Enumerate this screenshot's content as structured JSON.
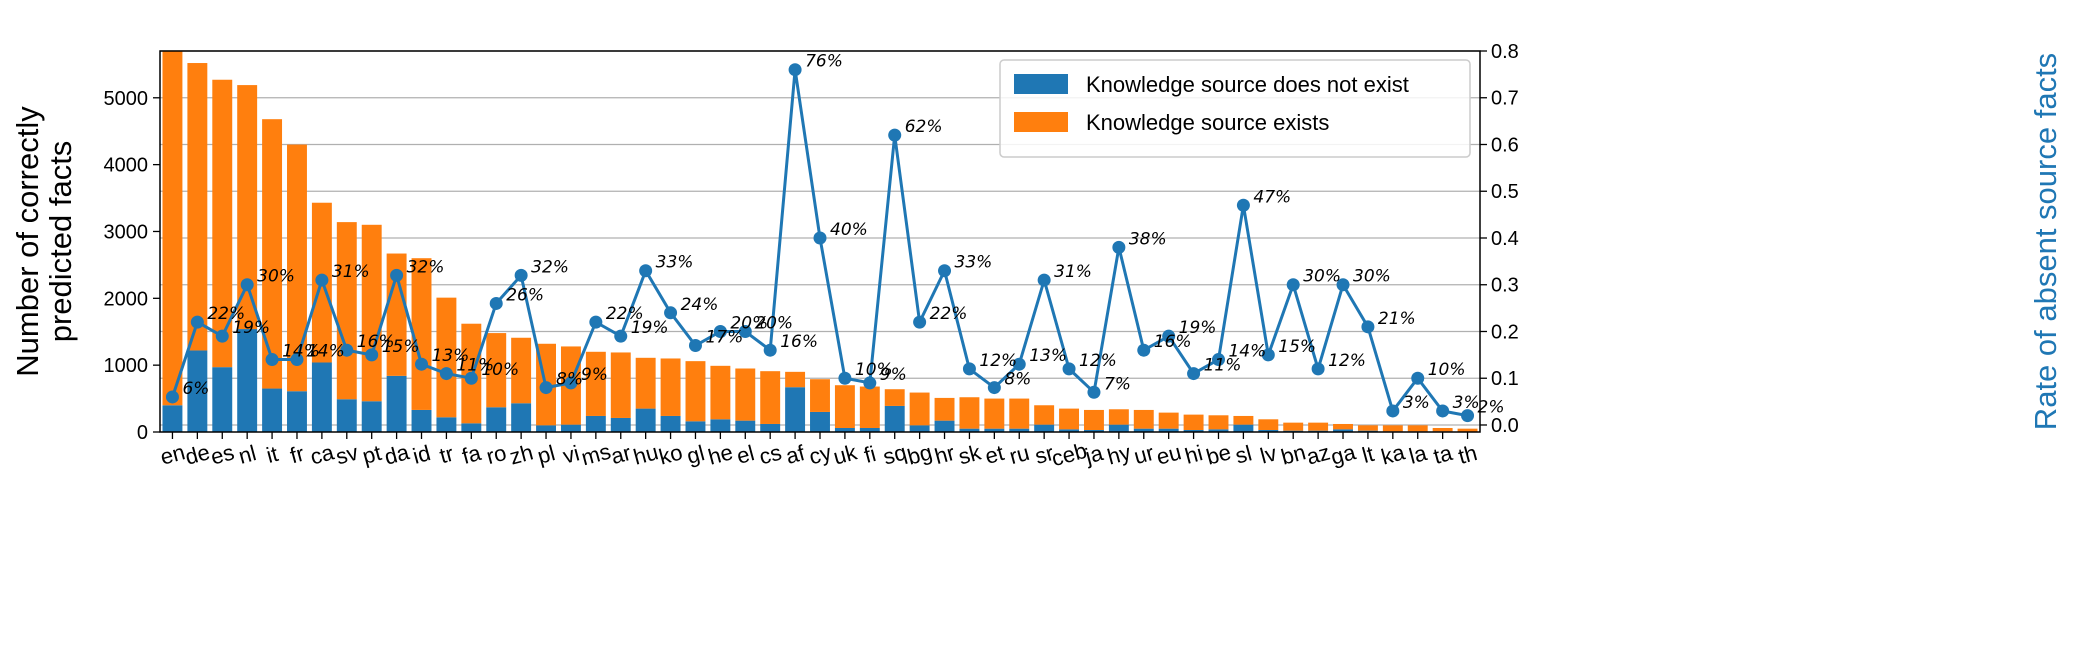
{
  "chart_data": {
    "type": "bar",
    "categories": [
      "en",
      "de",
      "es",
      "nl",
      "it",
      "fr",
      "ca",
      "sv",
      "pt",
      "da",
      "id",
      "tr",
      "fa",
      "ro",
      "zh",
      "pl",
      "vi",
      "ms",
      "ar",
      "hu",
      "ko",
      "gl",
      "he",
      "el",
      "cs",
      "af",
      "cy",
      "uk",
      "fi",
      "sq",
      "bg",
      "hr",
      "sk",
      "et",
      "ru",
      "sr",
      "ceb",
      "ja",
      "hy",
      "ur",
      "eu",
      "hi",
      "be",
      "sl",
      "lv",
      "bn",
      "az",
      "ga",
      "lt",
      "ka",
      "la",
      "ta",
      "th"
    ],
    "series": [
      {
        "name": "Knowledge source does not exist",
        "color": "#1f77b4",
        "values": [
          400,
          1220,
          970,
          1540,
          650,
          610,
          1040,
          490,
          460,
          840,
          330,
          220,
          130,
          370,
          430,
          100,
          110,
          240,
          210,
          350,
          240,
          160,
          190,
          170,
          120,
          670,
          300,
          60,
          60,
          390,
          100,
          170,
          50,
          50,
          50,
          110,
          40,
          30,
          110,
          50,
          50,
          30,
          40,
          110,
          30,
          20,
          20,
          40,
          20,
          10,
          10,
          10,
          0
        ]
      },
      {
        "name": "Knowledge source exists",
        "color": "#ff7f0e",
        "values": [
          5330,
          4300,
          4300,
          3650,
          4030,
          3690,
          2390,
          2650,
          2640,
          1830,
          2270,
          1790,
          1490,
          1110,
          980,
          1220,
          1170,
          960,
          980,
          760,
          860,
          900,
          800,
          780,
          790,
          230,
          490,
          640,
          620,
          250,
          490,
          340,
          470,
          450,
          450,
          290,
          310,
          300,
          230,
          280,
          240,
          230,
          210,
          130,
          160,
          120,
          120,
          80,
          80,
          90,
          90,
          50,
          50
        ]
      }
    ],
    "rate": {
      "name": "Rate of absent source facts",
      "values": [
        0.06,
        0.22,
        0.19,
        0.3,
        0.14,
        0.14,
        0.31,
        0.16,
        0.15,
        0.32,
        0.13,
        0.11,
        0.1,
        0.26,
        0.32,
        0.08,
        0.09,
        0.22,
        0.19,
        0.33,
        0.24,
        0.17,
        0.2,
        0.2,
        0.16,
        0.76,
        0.4,
        0.1,
        0.09,
        0.62,
        0.22,
        0.33,
        0.12,
        0.08,
        0.13,
        0.31,
        0.12,
        0.07,
        0.38,
        0.16,
        0.19,
        0.11,
        0.14,
        0.47,
        0.15,
        0.3,
        0.12,
        0.3,
        0.21,
        0.03,
        0.1,
        0.03,
        0.02
      ],
      "labels": [
        "6%",
        "22%",
        "19%",
        "30%",
        "14%",
        "14%",
        "31%",
        "16%",
        "15%",
        "32%",
        "13%",
        "11%",
        "10%",
        "26%",
        "32%",
        "8%",
        "9%",
        "22%",
        "19%",
        "33%",
        "24%",
        "17%",
        "20%",
        "20%",
        "16%",
        "76%",
        "40%",
        "10%",
        "9%",
        "62%",
        "22%",
        "33%",
        "12%",
        "8%",
        "13%",
        "31%",
        "12%",
        "7%",
        "38%",
        "16%",
        "19%",
        "11%",
        "14%",
        "47%",
        "15%",
        "30%",
        "12%",
        "30%",
        "21%",
        "3%",
        "10%",
        "3%",
        "2%"
      ]
    },
    "ylabel": "Number of correctly\npredicted facts",
    "y2label": "Rate of absent source facts",
    "ylim": [
      0,
      5700
    ],
    "y2lim": [
      -0.015,
      0.8
    ],
    "yticks": [
      0,
      1000,
      2000,
      3000,
      4000,
      5000
    ],
    "y2ticks": [
      0.0,
      0.1,
      0.2,
      0.3,
      0.4,
      0.5,
      0.6,
      0.7,
      0.8
    ],
    "grid": "horizontal",
    "legend_position": "top-right",
    "line_color": "#1f77b4",
    "y2label_color": "#1f77b4"
  }
}
